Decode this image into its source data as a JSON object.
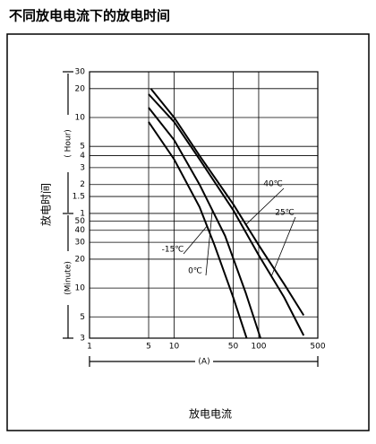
{
  "chart_data": {
    "type": "line",
    "title": "不同放电电流下的放电时间",
    "x_label": "(A)",
    "x_title": "放电电流",
    "y_title": "放电时间",
    "y_label_hour": "( Hour)",
    "y_label_minute": "(Minute)",
    "log_x": true,
    "log_y": true,
    "grid": true,
    "xlim": [
      1,
      500
    ],
    "xticks": [
      1,
      5,
      10,
      50,
      100,
      500
    ],
    "ylim": [
      3,
      1800
    ],
    "yticks": [
      {
        "value": 1800,
        "label": "30"
      },
      {
        "value": 1200,
        "label": "20"
      },
      {
        "value": 600,
        "label": "10"
      },
      {
        "value": 300,
        "label": "5"
      },
      {
        "value": 240,
        "label": "4"
      },
      {
        "value": 180,
        "label": "3"
      },
      {
        "value": 120,
        "label": "2"
      },
      {
        "value": 90,
        "label": "1.5"
      },
      {
        "value": 60,
        "label": "1"
      },
      50,
      40,
      30,
      20,
      10,
      5,
      3
    ],
    "series": [
      {
        "name": "40℃",
        "color": "#000",
        "x": [
          5.3,
          10,
          20,
          50,
          100,
          200,
          340
        ],
        "values": [
          1200,
          600,
          240,
          75,
          28,
          11,
          5.2
        ]
      },
      {
        "name": "25℃",
        "color": "#000",
        "x": [
          5,
          10,
          20,
          50,
          100,
          200,
          340
        ],
        "values": [
          1050,
          540,
          220,
          65,
          22,
          8,
          3.2
        ]
      },
      {
        "name": "0℃",
        "color": "#000",
        "x": [
          5,
          10,
          20,
          40,
          70,
          105
        ],
        "values": [
          760,
          350,
          120,
          35,
          9,
          3
        ]
      },
      {
        "name": "-15℃",
        "color": "#000",
        "x": [
          5,
          10,
          20,
          30,
          50,
          72
        ],
        "values": [
          540,
          220,
          70,
          28,
          8,
          3
        ]
      }
    ]
  }
}
